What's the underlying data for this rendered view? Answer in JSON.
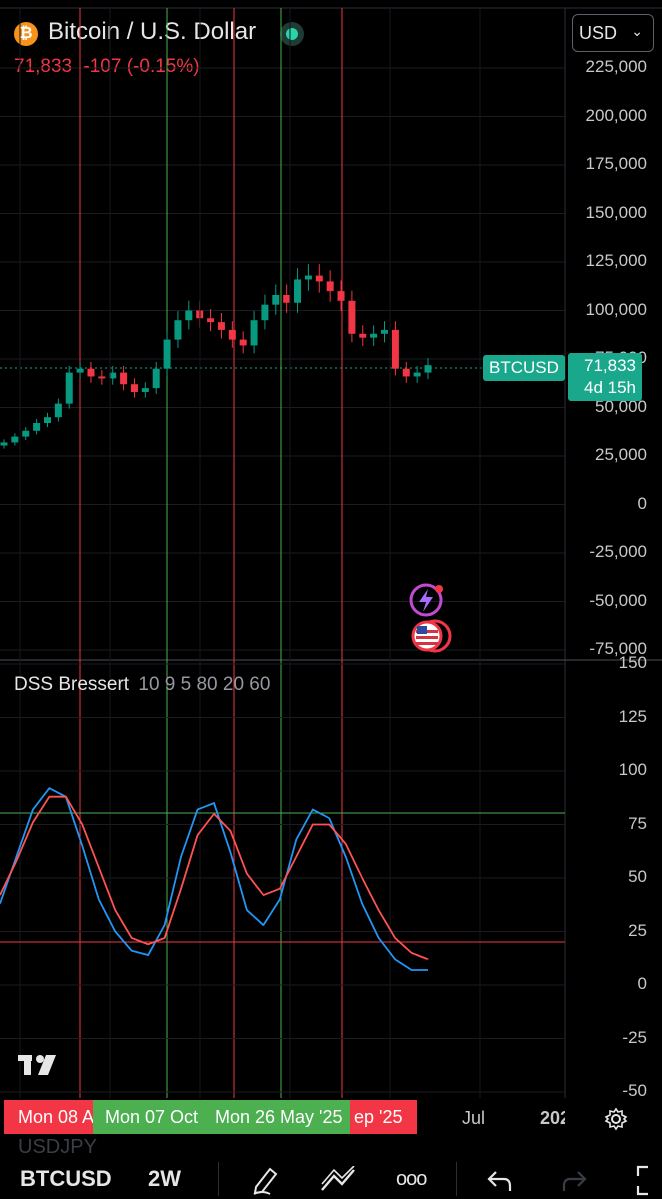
{
  "header": {
    "coin_icon": "bitcoin-icon",
    "title": "Bitcoin / U.S. Dollar",
    "price": "71,833",
    "change": "-107",
    "change_pct": "(-0.15%)",
    "currency": "USD"
  },
  "price_axis": [
    "225,000",
    "200,000",
    "175,000",
    "150,000",
    "125,000",
    "100,000",
    "75,000",
    "50,000",
    "25,000",
    "0",
    "-25,000",
    "-50,000",
    "-75,000"
  ],
  "symbol_badge": "BTCUSD",
  "price_badge": {
    "value": "71,833",
    "countdown": "4d 15h"
  },
  "indicator": {
    "name": "DSS Bressert",
    "params": "10 9 5 80 20 60",
    "axis": [
      "150",
      "125",
      "100",
      "75",
      "50",
      "25",
      "0",
      "-25",
      "-50"
    ],
    "levels": {
      "upper": 80,
      "lower": 20
    }
  },
  "time_axis": {
    "pills": [
      {
        "label": "Mon 08 A",
        "color": "#f23645"
      },
      {
        "label": "Mon 07 Oct",
        "color": "#4caf50"
      },
      {
        "label": "Mon 26 May '25",
        "color": "#4caf50"
      },
      {
        "label": "ep '25",
        "color": "#f23645"
      }
    ],
    "labels": [
      "Jul",
      "202"
    ]
  },
  "ghost_symbol": "USDJPY",
  "toolbar": {
    "symbol": "BTCUSD",
    "interval": "2W",
    "draw_icon": "pencil-icon",
    "trend_icon": "trendline-icon",
    "more": "ooo",
    "undo_icon": "undo-icon",
    "redo_icon": "redo-icon",
    "fullscreen_icon": "fullscreen-icon"
  },
  "chart_data": [
    {
      "type": "candlestick",
      "symbol": "BTCUSD",
      "interval": "2W",
      "y_range": [
        -75000,
        225000
      ],
      "approx_close_path": [
        32000,
        35000,
        38000,
        42000,
        45000,
        52000,
        68000,
        70000,
        66000,
        65000,
        68000,
        62000,
        58000,
        60000,
        70000,
        85000,
        95000,
        100000,
        96000,
        94000,
        90000,
        85000,
        82000,
        95000,
        103000,
        108000,
        104000,
        116000,
        118000,
        115000,
        110000,
        105000,
        88000,
        86000,
        88000,
        90000,
        70000,
        66000,
        68000,
        71833
      ],
      "last": 71833,
      "vertical_markers": [
        {
          "label": "Mon 08 A",
          "color": "#f23645"
        },
        {
          "label": "Mon 07 Oct",
          "color": "#4caf50"
        },
        {
          "label": "",
          "color": "#f23645"
        },
        {
          "label": "Mon 26 May '25",
          "color": "#4caf50"
        },
        {
          "label": "ep '25",
          "color": "#f23645"
        }
      ]
    },
    {
      "type": "line",
      "title": "DSS Bressert",
      "y_range": [
        -50,
        150
      ],
      "series": [
        {
          "color": "#2196f3",
          "values": [
            38,
            60,
            82,
            92,
            88,
            65,
            40,
            25,
            16,
            14,
            28,
            60,
            82,
            85,
            62,
            35,
            28,
            40,
            68,
            82,
            78,
            60,
            38,
            22,
            12,
            7,
            7
          ]
        },
        {
          "color": "#ff5252",
          "values": [
            42,
            58,
            76,
            88,
            88,
            75,
            55,
            35,
            22,
            19,
            22,
            45,
            70,
            80,
            72,
            52,
            42,
            45,
            60,
            75,
            75,
            66,
            50,
            35,
            22,
            15,
            12
          ]
        }
      ]
    }
  ]
}
